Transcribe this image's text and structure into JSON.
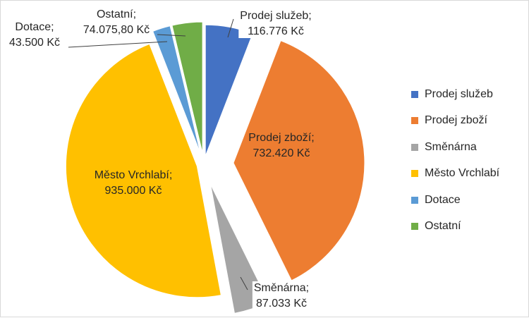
{
  "chart_data": {
    "type": "pie",
    "title": "",
    "unit": "Kč",
    "legend_position": "right",
    "slices": [
      {
        "name": "Prodej služeb",
        "value": 116776,
        "label_value": "116.776 Kč",
        "color": "#4472C4"
      },
      {
        "name": "Prodej zboží",
        "value": 732420,
        "label_value": "732.420 Kč",
        "color": "#ED7D31"
      },
      {
        "name": "Směnárna",
        "value": 87033,
        "label_value": "87.033 Kč",
        "color": "#A5A5A5"
      },
      {
        "name": "Město Vrchlabí",
        "value": 935000,
        "label_value": "935.000 Kč",
        "color": "#FFC000"
      },
      {
        "name": "Dotace",
        "value": 43500,
        "label_value": "43.500 Kč",
        "color": "#5B9BD5"
      },
      {
        "name": "Ostatní",
        "value": 74075.8,
        "label_value": "74.075,80 Kč",
        "color": "#70AD47"
      }
    ]
  }
}
